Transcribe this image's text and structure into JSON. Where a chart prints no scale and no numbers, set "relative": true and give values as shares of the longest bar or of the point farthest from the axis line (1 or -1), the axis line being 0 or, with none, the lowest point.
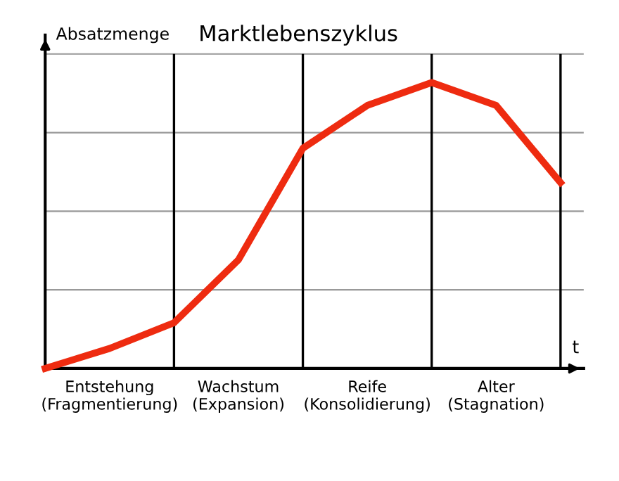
{
  "chart_data": {
    "type": "line",
    "title": "Marktlebenszyklus",
    "ylabel": "Absatzmenge",
    "xlabel": "t",
    "categories": [
      null,
      "Entstehung\n(Fragmentierung)",
      null,
      "Wachstum\n(Expansion)",
      null,
      "Reife\n(Konsolidierung)",
      null,
      "Alter\n(Stagnation)",
      null
    ],
    "relative": true,
    "grid": true,
    "marker": "none",
    "line_style": "solid",
    "series": [
      {
        "color": "#ee2b10",
        "values": [
          0,
          0.07,
          0.16,
          0.38,
          0.77,
          0.92,
          1,
          0.92,
          0.65
        ]
      }
    ]
  }
}
